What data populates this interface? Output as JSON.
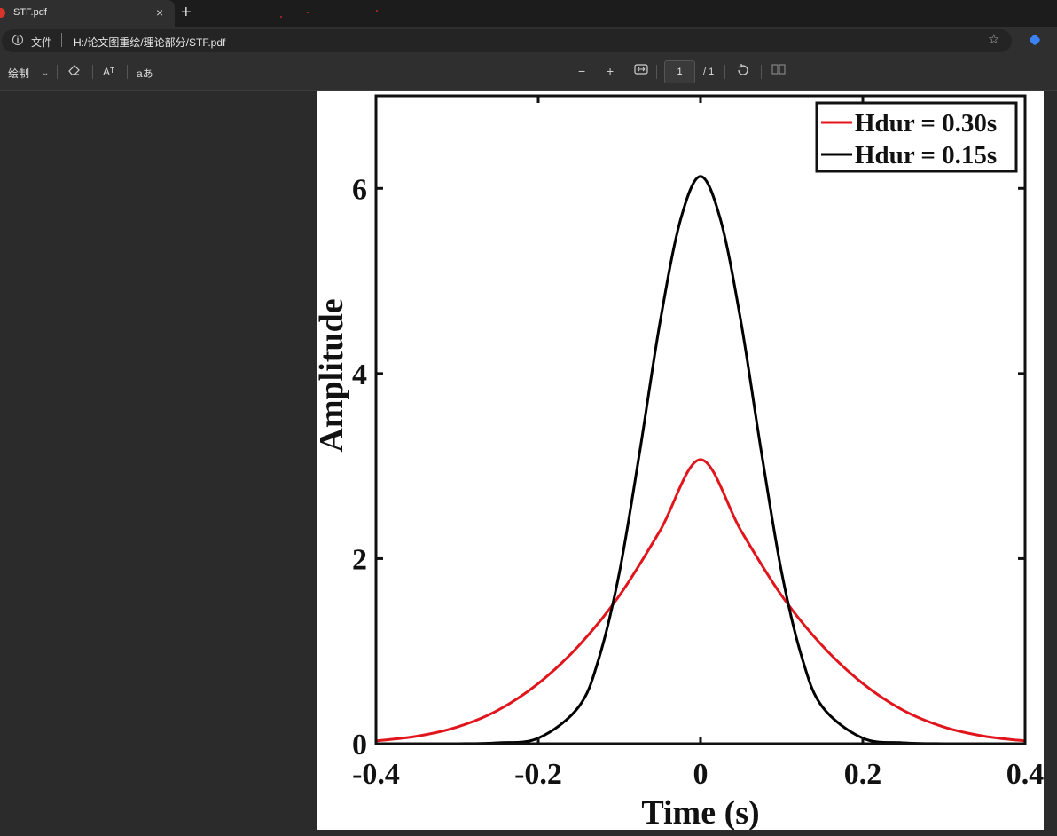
{
  "tab": {
    "title": "STF.pdf",
    "close": "×",
    "new_tab": "+"
  },
  "address": {
    "label": "文件",
    "url": "H:/论文图重绘/理论部分/STF.pdf"
  },
  "toolbar": {
    "draw_label": "绘制",
    "read_aloud": "Aᵀ",
    "translate": "aあ",
    "zoom_out": "−",
    "zoom_in": "+",
    "page_current": "1",
    "page_total": "/ 1"
  },
  "chart_data": {
    "type": "line",
    "xlabel": "Time (s)",
    "ylabel": "Amplitude",
    "xlim": [
      -0.4,
      0.4
    ],
    "ylim": [
      0,
      7
    ],
    "xticks": [
      "-0.4",
      "-0.2",
      "0",
      "0.2",
      "0.4"
    ],
    "xtick_values": [
      -0.4,
      -0.2,
      0,
      0.2,
      0.4
    ],
    "yticks": [
      "0",
      "2",
      "4",
      "6"
    ],
    "ytick_values": [
      0,
      2,
      4,
      6
    ],
    "legend_position": "top-right",
    "series": [
      {
        "name": "Hdur = 0.30s",
        "color": "#e0161c",
        "x": [
          -0.4,
          -0.35,
          -0.3,
          -0.25,
          -0.2,
          -0.15,
          -0.1,
          -0.05,
          0,
          0.05,
          0.1,
          0.15,
          0.2,
          0.25,
          0.3,
          0.35,
          0.4
        ],
        "y": [
          0.03,
          0.08,
          0.18,
          0.36,
          0.65,
          1.06,
          1.6,
          2.3,
          3.07,
          2.3,
          1.6,
          1.06,
          0.65,
          0.36,
          0.18,
          0.08,
          0.03
        ]
      },
      {
        "name": "Hdur = 0.15s",
        "color": "#000000",
        "x": [
          -0.3,
          -0.25,
          -0.2,
          -0.15,
          -0.125,
          -0.1,
          -0.075,
          -0.05,
          -0.025,
          0,
          0.025,
          0.05,
          0.075,
          0.1,
          0.125,
          0.15,
          0.2,
          0.25,
          0.3
        ],
        "y": [
          0.0,
          0.01,
          0.06,
          0.4,
          0.93,
          1.85,
          3.15,
          4.55,
          5.65,
          6.13,
          5.65,
          4.55,
          3.15,
          1.85,
          0.93,
          0.4,
          0.06,
          0.01,
          0.0
        ]
      }
    ]
  }
}
